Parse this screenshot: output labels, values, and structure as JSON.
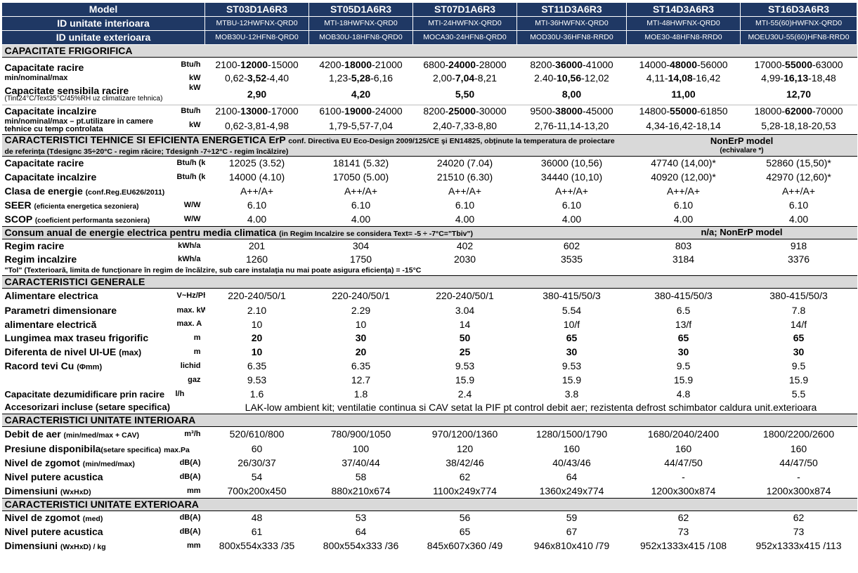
{
  "header": {
    "model_label": "Model",
    "indoor_label": "ID unitate interioara",
    "outdoor_label": "ID unitate exterioara",
    "models": [
      "ST03D1A6R3",
      "ST05D1A6R3",
      "ST07D1A6R3",
      "ST11D3A6R3",
      "ST14D3A6R3",
      "ST16D3A6R3"
    ],
    "indoor_ids": [
      "MTBU-12HWFNX-QRD0",
      "MTI-18HWFNX-QRD0",
      "MTI-24HWFNX-QRD0",
      "MTI-36HWFNX-QRD0",
      "MTI-48HWFNX-QRD0",
      "MTI-55(60)HWFNX-QRD0"
    ],
    "outdoor_ids": [
      "MOB30U-12HFN8-QRD0",
      "MOB30U-18HFN8-QRD0",
      "MOCA30-24HFN8-QRD0",
      "MOD30U-36HFN8-RRD0",
      "MOE30-48HFN8-RRD0",
      "MOEU30U-55(60)HFN8-RRD0"
    ]
  },
  "cap": {
    "title": "CAPACITATE FRIGORIFICA",
    "racire_label": "Capacitate racire",
    "racire_sub": "min/nominal/max",
    "unit_btu": "Btu/h",
    "unit_kw": "kW",
    "racire_btu": [
      [
        "2100-",
        "12000",
        "-15000"
      ],
      [
        "4200-",
        "18000",
        "-21000"
      ],
      [
        "6800-",
        "24000",
        "-28000"
      ],
      [
        "8200-",
        "36000",
        "-41000"
      ],
      [
        "14000-",
        "48000",
        "-56000"
      ],
      [
        "17000-",
        "55000",
        "-63000"
      ]
    ],
    "racire_kw": [
      [
        "0,62-",
        "3,52",
        "-4,40"
      ],
      [
        "1,23-",
        "5,28",
        "-6,16"
      ],
      [
        "2,00-",
        "7,04",
        "-8,21"
      ],
      [
        "2.40-",
        "10,56",
        "-12,02"
      ],
      [
        "4,11-",
        "14,08",
        "-16,42"
      ],
      [
        "4,99-",
        "16,13",
        "-18,48"
      ]
    ],
    "sensibila_label": "Capacitate sensibila racire",
    "sensibila_sub": "(Tint24°C/Text35°C/45%RH uz climatizare tehnica)",
    "sensibila_kw": [
      "2,90",
      "4,20",
      "5,50",
      "8,00",
      "11,00",
      "12,70"
    ],
    "incalzire_label": "Capacitate incalzire",
    "incalzire_sub": "min/nominal/max – pt.utilizare in camere tehnice cu temp controlata",
    "incalzire_btu": [
      [
        "2100-",
        "13000",
        "-17000"
      ],
      [
        "6100-",
        "19000",
        "-24000"
      ],
      [
        "8200-",
        "25000",
        "-30000"
      ],
      [
        "9500-",
        "38000",
        "-45000"
      ],
      [
        "14800-",
        "55000",
        "-61850"
      ],
      [
        "18000-",
        "62000",
        "-70000"
      ]
    ],
    "incalzire_kw": [
      "0,62-3,81-4,98",
      "1,79-5,57-7,04",
      "2,40-7,33-8,80",
      "2,76-11,14-13,20",
      "4,34-16,42-18,14",
      "5,28-18,18-20,53"
    ]
  },
  "erp": {
    "title": "CARACTERISTICI TEHNICE SI EFICIENTA ENERGETICA ErP",
    "title_note": "conf. Directiva EU Eco-Design 2009/125/CE şi EN14825, obţinute la temperatura de proiectare de referinţa (Tdesignc 35÷20°C - regim răcire; Tdesignh -7÷12°C - regim încălzire)",
    "nonerp_label": "NonErP model",
    "nonerp_sub": "(echivalare *)",
    "racire_label": "Capacitate racire",
    "incalzire_label": "Capacitate incalzire",
    "unit_btu_kw": "Btu/h (kW)",
    "racire": [
      "12025 (3.52)",
      "18141 (5.32)",
      "24020 (7.04)",
      "36000 (10,56)",
      "47740 (14,00)*",
      "52860 (15,50)*"
    ],
    "incalzire": [
      "14000 (4.10)",
      "17050 (5.00)",
      "21510 (6.30)",
      "34440 (10,10)",
      "40920 (12,00)*",
      "42970 (12,60)*"
    ],
    "clasa_label": "Clasa de energie",
    "clasa_sub": "(conf.Reg.EU626/2011)",
    "clasa": [
      "A++/A+",
      "A++/A+",
      "A++/A+",
      "A++/A+",
      "A++/A+",
      "A++/A+"
    ],
    "seer_label": "SEER",
    "seer_sub": "(eficienta energetica sezoniera)",
    "unit_ww": "W/W",
    "seer": [
      "6.10",
      "6.10",
      "6.10",
      "6.10",
      "6.10",
      "6.10"
    ],
    "scop_label": "SCOP",
    "scop_sub": "(coeficient performanta sezoniera)",
    "scop": [
      "4.00",
      "4.00",
      "4.00",
      "4.00",
      "4.00",
      "4.00"
    ]
  },
  "consum": {
    "title": "Consum anual de energie electrica pentru media climatica",
    "title_note": "(in Regim Incalzire se considera Text= -5 ÷ -7°C=\"Tbiv\")",
    "nonerp": "n/a; NonErP model",
    "racire_label": "Regim racire",
    "incalzire_label": "Regim incalzire",
    "unit_kwh": "kWh/a",
    "racire": [
      "201",
      "304",
      "402",
      "602",
      "803",
      "918"
    ],
    "incalzire": [
      "1260",
      "1750",
      "2030",
      "3535",
      "3184",
      "3376"
    ],
    "note": "\"Tol\" (Texterioară, limita de funcţionare în regim de încălzire, sub care instalaţia nu mai poate asigura eficienţa) = -15°C"
  },
  "general": {
    "title": "CARACTERISTICI GENERALE",
    "alimentare_label": "Alimentare electrica",
    "alimentare_unit": "V~Hz/Ph",
    "alimentare": [
      "220-240/50/1",
      "220-240/50/1",
      "220-240/50/1",
      "380-415/50/3",
      "380-415/50/3",
      "380-415/50/3"
    ],
    "param_label": "Parametri dimensionare",
    "param_unit": "max. kW",
    "param_kw": [
      "2.10",
      "2.29",
      "3.04",
      "5.54",
      "6.5",
      "7.8"
    ],
    "alim2_label": "alimentare electrică",
    "alim2_unit": "max. A",
    "param_a": [
      "10",
      "10",
      "14",
      "10/f",
      "13/f",
      "14/f"
    ],
    "lungime_label": "Lungimea max traseu frigorific",
    "unit_m": "m",
    "lungime": [
      "20",
      "30",
      "50",
      "65",
      "65",
      "65"
    ],
    "dif_label": "Diferenta de nivel UI-UE",
    "dif_sub": "(max)",
    "dif": [
      "10",
      "20",
      "25",
      "30",
      "30",
      "30"
    ],
    "racord_label": "Racord tevi Cu",
    "racord_sub": "(Φmm)",
    "lichid_label": "lichid",
    "lichid": [
      "6.35",
      "6.35",
      "9.53",
      "9.53",
      "9.5",
      "9.5"
    ],
    "gaz_label": "gaz",
    "gaz": [
      "9.53",
      "12.7",
      "15.9",
      "15.9",
      "15.9",
      "15.9"
    ],
    "dezum_label": "Capacitate dezumidificare prin racire",
    "dezum_unit": "l/h",
    "dezum": [
      "1.6",
      "1.8",
      "2.4",
      "3.8",
      "4.8",
      "5.5"
    ],
    "acc_label": "Accesorizari incluse (setare specifica)",
    "acc_value": "LAK-low ambient kit; ventilatie continua si CAV setat la PIF pt control debit aer; rezistenta defrost schimbator caldura unit.exterioara"
  },
  "indoor": {
    "title": "CARACTERISTICI UNITATE INTERIOARA",
    "debit_label": "Debit de aer",
    "debit_sub": "(min/med/max + CAV)",
    "debit_unit": "m³/h",
    "debit": [
      "520/610/800",
      "780/900/1050",
      "970/1200/1360",
      "1280/1500/1790",
      "1680/2040/2400",
      "1800/2200/2600"
    ],
    "presiune_label": "Presiune disponibila",
    "presiune_sub": "(setare specifica)",
    "presiune_unit": "max.Pa",
    "presiune": [
      "60",
      "100",
      "120",
      "160",
      "160",
      "160"
    ],
    "zgomot_label": "Nivel de zgomot",
    "zgomot_sub": "(min/med/max)",
    "unit_db": "dB(A)",
    "zgomot": [
      "26/30/37",
      "37/40/44",
      "38/42/46",
      "40/43/46",
      "44/47/50",
      "44/47/50"
    ],
    "putere_label": "Nivel putere acustica",
    "putere": [
      "54",
      "58",
      "62",
      "64",
      "-",
      "-"
    ],
    "dim_label": "Dimensiuni",
    "dim_sub": "(WxHxD)",
    "unit_mm": "mm",
    "dim": [
      "700x200x450",
      "880x210x674",
      "1100x249x774",
      "1360x249x774",
      "1200x300x874",
      "1200x300x874"
    ]
  },
  "outdoor": {
    "title": "CARACTERISTICI UNITATE EXTERIOARA",
    "zgomot_label": "Nivel de zgomot",
    "zgomot_sub": "(med)",
    "unit_db": "dB(A)",
    "zgomot": [
      "48",
      "53",
      "56",
      "59",
      "62",
      "62"
    ],
    "putere_label": "Nivel putere acustica",
    "putere": [
      "61",
      "64",
      "65",
      "67",
      "73",
      "73"
    ],
    "dim_label": "Dimensiuni",
    "dim_sub": "(WxHxD) / kg",
    "unit_mm": "mm",
    "dim": [
      "800x554x333 /35",
      "800x554x333 /36",
      "845x607x360 /49",
      "946x810x410 /79",
      "952x1333x415 /108",
      "952x1333x415 /113"
    ]
  }
}
